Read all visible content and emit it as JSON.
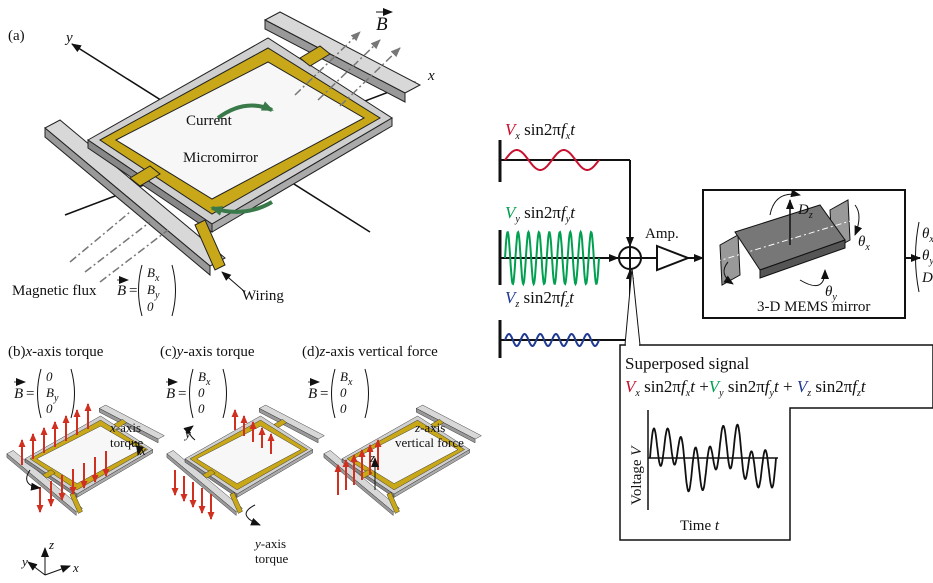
{
  "panel_a": {
    "label": "(a)",
    "axis_x": "x",
    "axis_y": "y",
    "field": "B",
    "current": "Current",
    "mirror": "Micromirror",
    "flux_label": "Magnetic flux",
    "flux_symbol": "B",
    "equals": "=",
    "flux_vector": [
      [
        "B",
        "x"
      ],
      [
        "B",
        "y"
      ],
      [
        "0"
      ]
    ],
    "wiring": "Wiring"
  },
  "panels": [
    {
      "label": "(b)",
      "title": [
        "x",
        "-axis torque"
      ],
      "symbol": "B",
      "equals": "=",
      "vector": [
        [
          "0"
        ],
        [
          "B",
          "y"
        ],
        [
          "0"
        ]
      ],
      "annotation": [
        [
          "x",
          "-axis"
        ],
        [
          "torque"
        ]
      ],
      "axis_labels": [
        "x"
      ]
    },
    {
      "label": "(c)",
      "title": [
        "y",
        "-axis torque"
      ],
      "symbol": "B",
      "equals": "=",
      "vector": [
        [
          "B",
          "x"
        ],
        [
          "0"
        ],
        [
          "0"
        ]
      ],
      "annotation": [
        [
          "y",
          "-axis"
        ],
        [
          "torque"
        ]
      ],
      "axis_labels": [
        "y"
      ]
    },
    {
      "label": "(d)",
      "title": [
        "z",
        "-axis vertical force"
      ],
      "symbol": "B",
      "equals": "=",
      "vector": [
        [
          "B",
          "x"
        ],
        [
          "0"
        ],
        [
          "0"
        ]
      ],
      "annotation": [
        [
          "z",
          "-axis"
        ],
        [
          "vertical force"
        ]
      ],
      "axis_labels": [
        "z"
      ]
    }
  ],
  "coords": [
    "z",
    "y",
    "x"
  ],
  "signals": [
    {
      "parts": [
        "V",
        "x",
        " sin2π",
        "f",
        "x",
        "t"
      ],
      "color": "#c8102e"
    },
    {
      "parts": [
        "V",
        "y",
        " sin2π",
        "f",
        "y",
        "t"
      ],
      "color": "#00a050"
    },
    {
      "parts": [
        "V",
        "z",
        " sin2π",
        "f",
        "z",
        "t"
      ],
      "color": "#1f3a93"
    }
  ],
  "amp": "Amp.",
  "mems": {
    "label": "3-D MEMS mirror",
    "dz": [
      "D",
      "z"
    ],
    "theta_x": [
      "θ",
      "x"
    ],
    "theta_y": [
      "θ",
      "y"
    ],
    "output": [
      [
        "θ",
        "x"
      ],
      [
        "θ",
        "y"
      ],
      [
        "D",
        "z"
      ]
    ]
  },
  "superposed": {
    "title": "Superposed signal",
    "terms": [
      [
        "V",
        "x",
        " sin2π",
        "f",
        "x",
        "t"
      ],
      [
        "V",
        "y",
        " sin2π",
        "f",
        "y",
        "t"
      ],
      [
        "V",
        "z",
        " sin2π",
        "f",
        "z",
        "t"
      ]
    ],
    "plus": [
      " +",
      " + "
    ],
    "y_label": [
      "Voltage ",
      "V"
    ],
    "x_label": [
      "Time ",
      "t"
    ]
  }
}
